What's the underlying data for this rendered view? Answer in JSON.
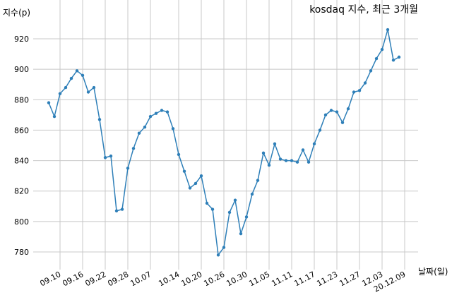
{
  "chart_data": {
    "type": "line",
    "title": "kosdaq 지수, 최근 3개월",
    "ylabel": "지수(p)",
    "xlabel": "날짜(일)",
    "ylim": [
      770,
      930
    ],
    "yticks": [
      780,
      800,
      820,
      840,
      860,
      880,
      900,
      920
    ],
    "grid": true,
    "xtick_labels": [
      "09.10",
      "09.16",
      "09.22",
      "09.28",
      "10.07",
      "10.14",
      "10.20",
      "10.26",
      "10.30",
      "11.05",
      "11.11",
      "11.17",
      "11.23",
      "11.27",
      "12.03",
      "20.12.09"
    ],
    "xtick_indices": [
      2,
      6,
      10,
      14,
      18,
      23,
      27,
      31,
      35,
      39,
      43,
      47,
      51,
      55,
      59,
      63
    ],
    "series": [
      {
        "color": "#2e7fb8",
        "values": [
          878,
          869,
          884,
          888,
          894,
          899,
          896,
          885,
          888,
          867,
          842,
          843,
          807,
          808,
          835,
          848,
          858,
          862,
          869,
          871,
          873,
          872,
          861,
          844,
          833,
          822,
          825,
          830,
          812,
          808,
          778,
          783,
          806,
          814,
          792,
          803,
          818,
          827,
          845,
          837,
          851,
          841,
          840,
          840,
          839,
          847,
          839,
          851,
          860,
          870,
          873,
          872,
          865,
          874,
          885,
          886,
          891,
          899,
          907,
          913,
          926,
          906,
          908
        ]
      }
    ]
  }
}
